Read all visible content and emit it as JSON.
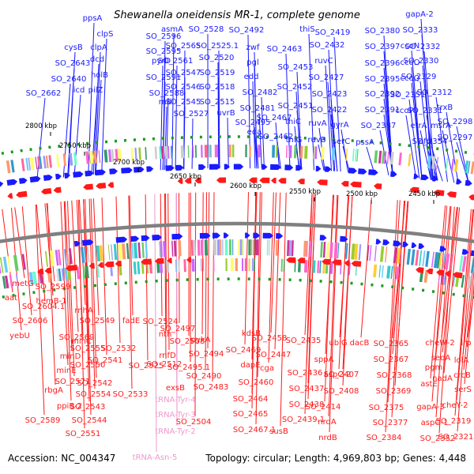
{
  "title": "Shewanella oneidensis MR-1, complete genome",
  "footer": {
    "accession": "Accession: NC_004347",
    "topology": "Topology: circular; Length: 4,969,803 bp; Genes: 4,448"
  },
  "colors": {
    "forward": "#1a1aff",
    "reverse": "#ff1a1a",
    "trna": "#ee99cc",
    "gc_skew": "#1f9a1f",
    "backbone": "#808080"
  },
  "scale_ticks": [
    "2800 kbp",
    "2750 kbp",
    "2700 kbp",
    "2650 kbp",
    "2600 kbp",
    "2550 kbp",
    "2500 kbp",
    "2450 kbp"
  ],
  "forward_genes": [
    "ppsA",
    "clpS",
    "cysB",
    "clpA",
    "SO_2643",
    "dcd",
    "SO_2640",
    "holB",
    "SO_2662",
    "icd",
    "pilZ",
    "SO_2596",
    "asmA",
    "SO_2528",
    "SO_2492",
    "SO_2595",
    "SO_2565",
    "SO_2525.1",
    "pyrD",
    "SO_2561",
    "SO_2520",
    "SO_2591",
    "SO_2547",
    "SO_2519",
    "SO_2546",
    "SO_2518",
    "SO_2588",
    "rnd",
    "SO_2545",
    "SO_2515",
    "SO_2527",
    "uvrB",
    "zwf",
    "pgl",
    "edd",
    "SO_2482",
    "SO_2481",
    "SO_2495",
    "eda",
    "SO_2467",
    "SO_2462",
    "thiS",
    "SO_2463",
    "SO_2453",
    "SO_2452",
    "SO_2451",
    "thiC",
    "thiG",
    "SO_2419",
    "SO_2432",
    "ruvC",
    "SO_2427",
    "SO_2423",
    "SO_2422",
    "ruvA",
    "ruvB",
    "gyrA",
    "serC",
    "SO_2380",
    "SO_2397",
    "SO_2396",
    "SO_2395",
    "SO_2392",
    "SO_2391",
    "SO_2387",
    "pssA",
    "gapA-2",
    "SO_2333",
    "ccoN",
    "SO_2332",
    "ccoO",
    "SO_2330",
    "ccoQ",
    "SO_2329",
    "SO_2351",
    "SO_2312",
    "ccoP",
    "SO_2331",
    "trxB",
    "etrA",
    "msrA",
    "SO_2298",
    "SO_2354",
    "efp",
    "SO_2297"
  ],
  "reverse_genes": [
    "metG",
    "SO_2599",
    "aat",
    "SO_2604.1",
    "hemB-1",
    "SO_2606",
    "rnhA",
    "yebU",
    "minC",
    "SO_2549",
    "fadE",
    "SO_2569",
    "SO_2524",
    "SO_2555",
    "SO_2532",
    "minD",
    "SO_2550",
    "minE",
    "SO_2571",
    "SO_2541",
    "SO_2542",
    "rbgA",
    "SO_2554",
    "SO_2533",
    "ppiB-2",
    "SO_2543",
    "SO_2589",
    "SO_2544",
    "SO_2551",
    "SO_2497",
    "nth",
    "SO_2508",
    "SO_2494",
    "rnfD",
    "SO_2525",
    "SO_2512",
    "SO_2495.1",
    "SO_2490",
    "exsB",
    "SO_2483",
    "SO_2504",
    "pykA",
    "tRNA-Tyr-4",
    "tRNA-Tyr-3",
    "tRNA-Tyr-2",
    "tRNA-Asn-5",
    "kdsB",
    "SO_2458",
    "SO_2469",
    "SO_2447",
    "dapE",
    "cga",
    "SO_2460",
    "SO_2464",
    "SO_2465",
    "SO_2467.1",
    "susB",
    "SO_2435",
    "SO_2436",
    "SO_2437",
    "SO_2438",
    "SO_2439.1",
    "ubiG",
    "dacB",
    "SO_2365",
    "sppA",
    "aspC-2",
    "SO_2407",
    "SO_2408",
    "SO_2367",
    "SO_2368",
    "SO_2369",
    "SO_2414",
    "nrdA",
    "nrdB",
    "SO_2375",
    "SO_2377",
    "SO_2384",
    "gapA-3",
    "aspC-1",
    "SO_2352",
    "cheW-2",
    "lrp",
    "seqA",
    "lolA",
    "pgm",
    "crcB",
    "nadA",
    "astE",
    "serS",
    "cheY-2",
    "SO_2319",
    "SO_2321"
  ]
}
